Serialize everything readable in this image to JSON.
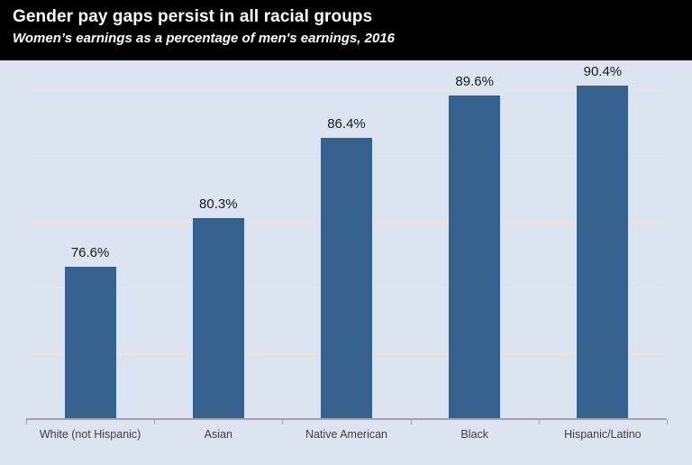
{
  "header": {
    "title": "Gender pay gaps persist in all racial groups",
    "subtitle": "Women’s earnings as a percentage of men's earnings, 2016"
  },
  "chart_data": {
    "type": "bar",
    "title": "Gender pay gaps persist in all racial groups",
    "subtitle": "Women’s earnings as a percentage of men's earnings, 2016",
    "categories": [
      "White (not Hispanic)",
      "Asian",
      "Native American",
      "Black",
      "Hispanic/Latino"
    ],
    "values": [
      76.6,
      80.3,
      86.4,
      89.6,
      90.4
    ],
    "value_labels": [
      "76.6%",
      "80.3%",
      "86.4%",
      "89.6%",
      "90.4%"
    ],
    "xlabel": "",
    "ylabel": "",
    "ylim": [
      65,
      92.5
    ],
    "gridlines": [
      70,
      75,
      80,
      85,
      90
    ],
    "grid": true,
    "legend": false,
    "colors": {
      "bar": "#36618f",
      "plot_background": "#dbe4f0",
      "header_background": "#000000",
      "header_text": "#ffffff",
      "gridline": "#ece7d4",
      "axis_line": "#a3a3a3",
      "value_label_text": "#1a1a1a",
      "axis_label_text": "#404040"
    }
  }
}
